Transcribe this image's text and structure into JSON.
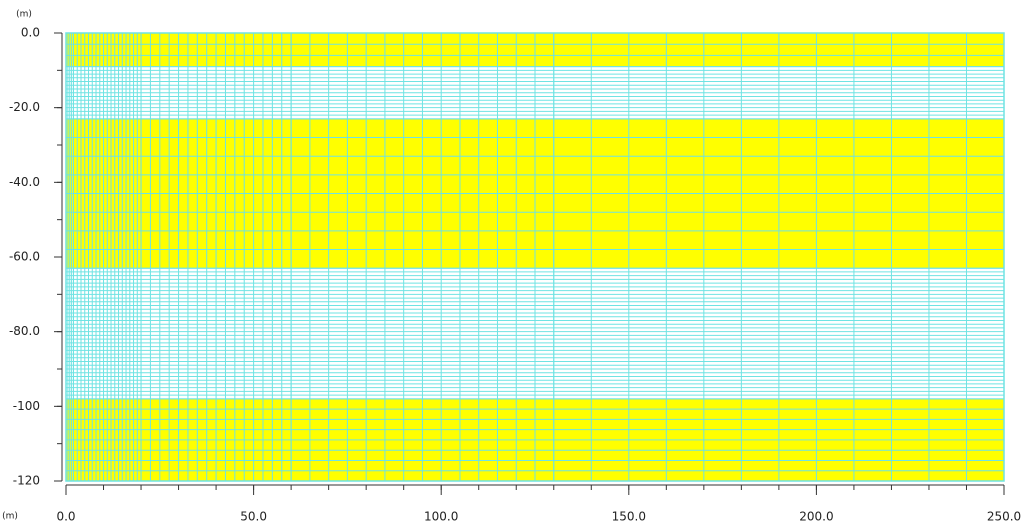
{
  "chart_data": {
    "type": "mesh",
    "x_unit": "(m)",
    "y_unit": "(m)",
    "xlim": [
      0,
      250
    ],
    "ylim": [
      -120,
      0
    ],
    "xticks": [
      {
        "value": 0,
        "label": "0.0"
      },
      {
        "value": 50,
        "label": "50.0"
      },
      {
        "value": 100,
        "label": "100.0"
      },
      {
        "value": 150,
        "label": "150.0"
      },
      {
        "value": 200,
        "label": "200.0"
      },
      {
        "value": 250,
        "label": "250.0"
      }
    ],
    "yticks": [
      {
        "value": 0,
        "label": "0.0"
      },
      {
        "value": -20,
        "label": "-20.0"
      },
      {
        "value": -40,
        "label": "-40.0"
      },
      {
        "value": -60,
        "label": "-60.0"
      },
      {
        "value": -80,
        "label": "-80.0"
      },
      -100,
      -120
    ],
    "minor_tick_step": 10,
    "mesh_color": "#6fe3e3",
    "layers": [
      {
        "top": 0,
        "bottom": -9,
        "color": "#ffff00",
        "mesh_dy": 3
      },
      {
        "top": -9,
        "bottom": -23,
        "color": "#ffffff",
        "mesh_dy": 1
      },
      {
        "top": -23,
        "bottom": -63,
        "color": "#ffff00",
        "mesh_dy": 5
      },
      {
        "top": -63,
        "bottom": -98,
        "color": "#ffffff",
        "mesh_dy": 1
      },
      {
        "top": -98,
        "bottom": -120,
        "color": "#ffff00",
        "mesh_dy": 2.75
      }
    ],
    "x_mesh": [
      {
        "from": 0,
        "to": 2,
        "dx": 0.5
      },
      {
        "from": 2,
        "to": 20,
        "dx": 1
      },
      {
        "from": 20,
        "to": 60,
        "dx": 2.5
      },
      {
        "from": 60,
        "to": 130,
        "dx": 5
      },
      {
        "from": 130,
        "to": 250,
        "dx": 10
      }
    ]
  }
}
